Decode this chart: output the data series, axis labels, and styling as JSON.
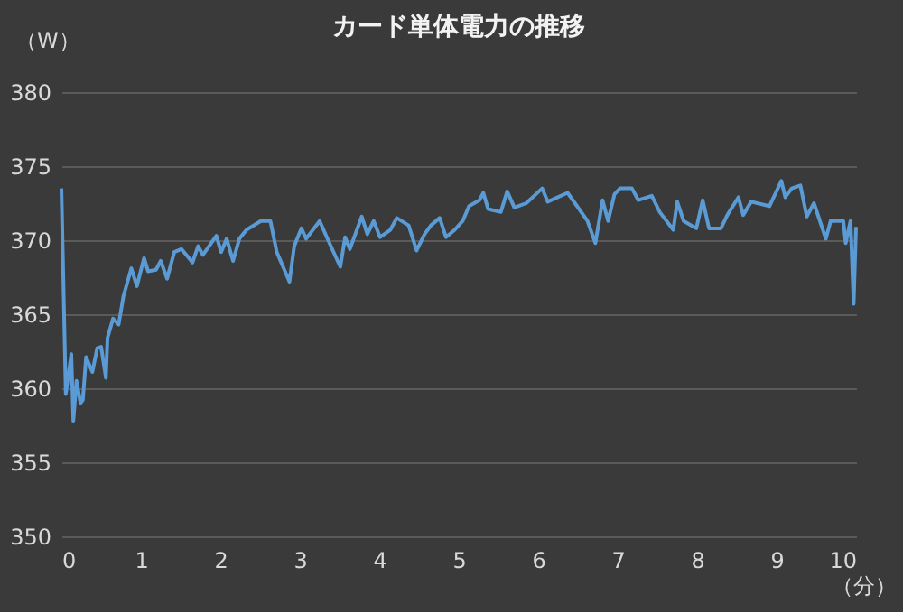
{
  "chart_data": {
    "type": "line",
    "title": "カード単体電力の推移",
    "xlabel": "（分）",
    "ylabel": "（W）",
    "xlim": [
      0,
      10
    ],
    "xticks": [
      0,
      1,
      2,
      3,
      4,
      5,
      6,
      7,
      8,
      9,
      10
    ],
    "ylim": [
      350,
      380
    ],
    "yticks": [
      350,
      355,
      360,
      365,
      370,
      375,
      380
    ],
    "grid": "y",
    "marker": "none",
    "line_style": "solid",
    "series": [
      {
        "color": "#5b9bd5",
        "x": [
          0,
          0.055,
          0.125,
          0.15,
          0.19,
          0.24,
          0.27,
          0.31,
          0.39,
          0.45,
          0.5,
          0.56,
          0.58,
          0.65,
          0.72,
          0.78,
          0.88,
          0.95,
          1.04,
          1.09,
          1.19,
          1.25,
          1.33,
          1.42,
          1.51,
          1.65,
          1.72,
          1.78,
          1.95,
          2.01,
          2.08,
          2.16,
          2.24,
          2.33,
          2.51,
          2.63,
          2.71,
          2.87,
          2.93,
          3.02,
          3.08,
          3.25,
          3.34,
          3.51,
          3.57,
          3.63,
          3.78,
          3.85,
          3.93,
          4.01,
          4.14,
          4.22,
          4.37,
          4.47,
          4.57,
          4.65,
          4.76,
          4.84,
          4.95,
          5.05,
          5.13,
          5.26,
          5.31,
          5.37,
          5.53,
          5.61,
          5.7,
          5.85,
          6.05,
          6.12,
          6.37,
          6.62,
          6.72,
          6.81,
          6.88,
          6.96,
          7.03,
          7.18,
          7.26,
          7.43,
          7.53,
          7.7,
          7.75,
          7.83,
          7.99,
          8.07,
          8.15,
          8.3,
          8.38,
          8.52,
          8.58,
          8.68,
          8.91,
          9.06,
          9.11,
          9.19,
          9.3,
          9.38,
          9.47,
          9.62,
          9.68,
          9.84,
          9.87,
          9.93,
          9.97,
          10
        ],
        "values": [
          373.5,
          359.6,
          362.3,
          357.8,
          360.5,
          359.0,
          359.2,
          362.1,
          361.1,
          362.7,
          362.8,
          360.7,
          363.4,
          364.7,
          364.3,
          366.2,
          368.1,
          366.9,
          368.8,
          367.9,
          368.0,
          368.6,
          367.4,
          369.2,
          369.4,
          368.5,
          369.6,
          369.0,
          370.3,
          369.2,
          370.1,
          368.6,
          370.1,
          370.7,
          371.3,
          371.3,
          369.2,
          367.2,
          369.6,
          370.8,
          370.1,
          371.3,
          370.2,
          368.2,
          370.2,
          369.4,
          371.6,
          370.4,
          371.3,
          370.2,
          370.7,
          371.5,
          371.0,
          369.3,
          370.4,
          371.0,
          371.5,
          370.2,
          370.7,
          371.3,
          372.3,
          372.7,
          373.2,
          372.1,
          371.9,
          373.3,
          372.2,
          372.5,
          373.5,
          372.6,
          373.2,
          371.3,
          369.8,
          372.7,
          371.3,
          373.1,
          373.5,
          373.5,
          372.7,
          373.0,
          371.9,
          370.7,
          372.6,
          371.3,
          370.8,
          372.7,
          370.8,
          370.8,
          371.7,
          372.9,
          371.7,
          372.6,
          372.3,
          374.0,
          372.9,
          373.5,
          373.7,
          371.6,
          372.5,
          370.1,
          371.3,
          371.3,
          369.8,
          371.3,
          365.7,
          370.9
        ]
      }
    ]
  }
}
